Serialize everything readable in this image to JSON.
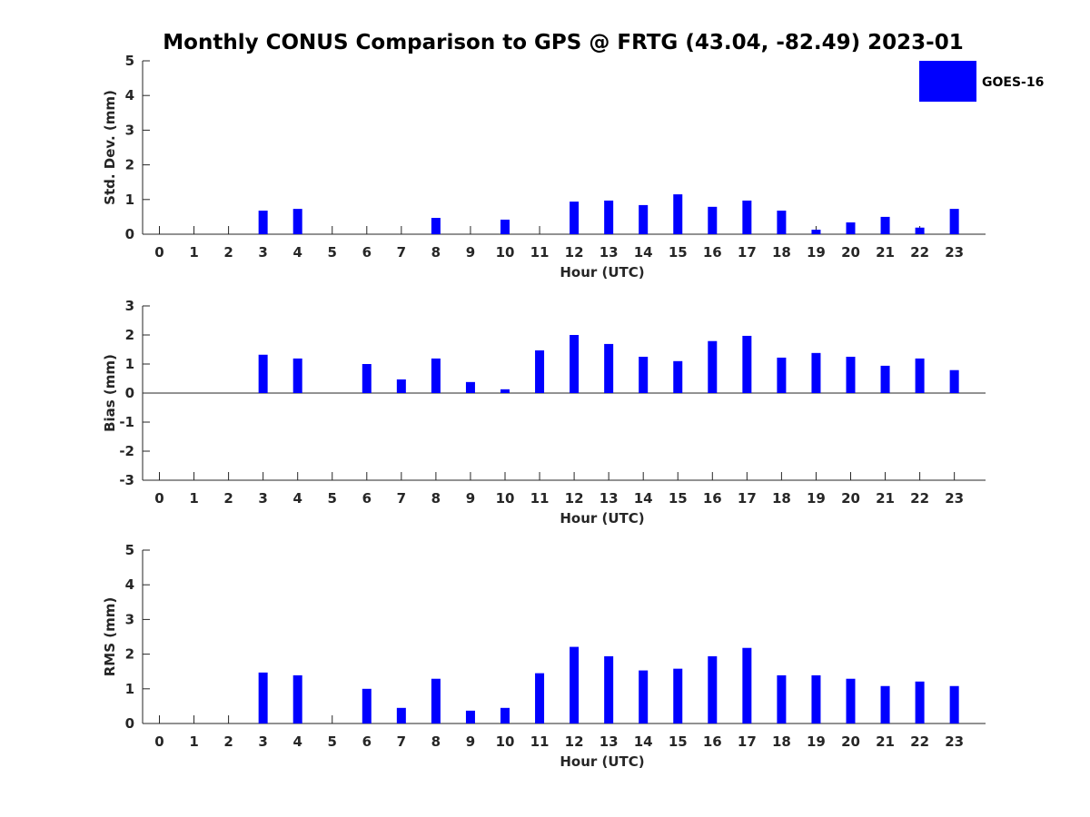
{
  "figure": {
    "title": "Monthly CONUS Comparison to GPS @ FRTG (43.04, -82.49) 2023-01"
  },
  "legend": {
    "label": "GOES-16",
    "color": "#0000ff",
    "placement": "top-right"
  },
  "chart_data": [
    {
      "type": "bar",
      "name": "std_dev",
      "title": "",
      "xlabel": "Hour (UTC)",
      "ylabel": "Std. Dev. (mm)",
      "ylim": [
        0,
        5
      ],
      "yticks": [
        0,
        1,
        2,
        3,
        4,
        5
      ],
      "grid": false,
      "categories": [
        "0",
        "1",
        "2",
        "3",
        "4",
        "5",
        "6",
        "7",
        "8",
        "9",
        "10",
        "11",
        "12",
        "13",
        "14",
        "15",
        "16",
        "17",
        "18",
        "19",
        "20",
        "21",
        "22",
        "23"
      ],
      "series": [
        {
          "name": "GOES-16",
          "color": "#0000ff",
          "values": [
            null,
            null,
            null,
            0.68,
            0.73,
            null,
            null,
            null,
            0.47,
            null,
            0.42,
            null,
            0.94,
            0.97,
            0.84,
            1.15,
            0.79,
            0.97,
            0.68,
            0.13,
            0.34,
            0.5,
            0.19,
            0.73
          ]
        }
      ]
    },
    {
      "type": "bar",
      "name": "bias",
      "title": "",
      "xlabel": "Hour (UTC)",
      "ylabel": "Bias (mm)",
      "ylim": [
        -3,
        3
      ],
      "yticks": [
        -3,
        -2,
        -1,
        0,
        1,
        2,
        3
      ],
      "grid": false,
      "categories": [
        "0",
        "1",
        "2",
        "3",
        "4",
        "5",
        "6",
        "7",
        "8",
        "9",
        "10",
        "11",
        "12",
        "13",
        "14",
        "15",
        "16",
        "17",
        "18",
        "19",
        "20",
        "21",
        "22",
        "23"
      ],
      "series": [
        {
          "name": "GOES-16",
          "color": "#0000ff",
          "values": [
            null,
            null,
            null,
            1.32,
            1.19,
            null,
            1.0,
            0.47,
            1.19,
            0.38,
            0.13,
            1.47,
            2.0,
            1.69,
            1.25,
            1.1,
            1.79,
            1.97,
            1.22,
            1.38,
            1.25,
            0.94,
            1.19,
            0.79
          ]
        }
      ]
    },
    {
      "type": "bar",
      "name": "rms",
      "title": "",
      "xlabel": "Hour (UTC)",
      "ylabel": "RMS (mm)",
      "ylim": [
        0,
        5
      ],
      "yticks": [
        0,
        1,
        2,
        3,
        4,
        5
      ],
      "grid": false,
      "categories": [
        "0",
        "1",
        "2",
        "3",
        "4",
        "5",
        "6",
        "7",
        "8",
        "9",
        "10",
        "11",
        "12",
        "13",
        "14",
        "15",
        "16",
        "17",
        "18",
        "19",
        "20",
        "21",
        "22",
        "23"
      ],
      "series": [
        {
          "name": "GOES-16",
          "color": "#0000ff",
          "values": [
            null,
            null,
            null,
            1.47,
            1.39,
            null,
            1.0,
            0.45,
            1.29,
            0.37,
            0.45,
            1.45,
            2.21,
            1.94,
            1.53,
            1.58,
            1.94,
            2.18,
            1.39,
            1.39,
            1.29,
            1.08,
            1.21,
            1.08
          ]
        }
      ]
    }
  ]
}
